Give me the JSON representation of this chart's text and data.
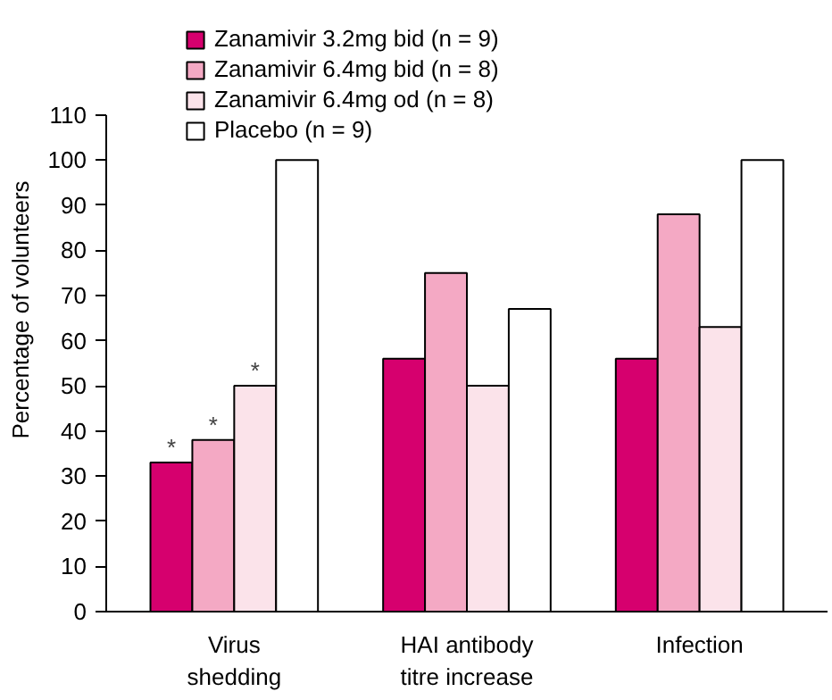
{
  "chart_data": {
    "type": "bar",
    "ylabel": "Percentage of volunteers",
    "categories": [
      "Virus\nshedding",
      "HAI antibody\ntitre increase",
      "Infection"
    ],
    "series": [
      {
        "name": "Zanamivir 3.2mg bid (n = 9)",
        "color": "#d6006e",
        "values": [
          33,
          56,
          56
        ]
      },
      {
        "name": "Zanamivir 6.4mg bid (n = 8)",
        "color": "#f4a9c4",
        "values": [
          38,
          75,
          88
        ]
      },
      {
        "name": "Zanamivir 6.4mg od (n = 8)",
        "color": "#fbe3ea",
        "values": [
          50,
          50,
          63
        ]
      },
      {
        "name": "Placebo (n = 9)",
        "color": "#ffffff",
        "values": [
          100,
          67,
          100
        ]
      }
    ],
    "ylim": [
      0,
      110
    ],
    "yticks": [
      0,
      10,
      20,
      30,
      40,
      50,
      60,
      70,
      80,
      90,
      100,
      110
    ],
    "grid": false,
    "legend": "top left",
    "annotations": [
      {
        "text": "*",
        "x": "Virus\nshedding",
        "y": 33
      },
      {
        "text": "*",
        "x": "Virus\nshedding",
        "y": 38
      },
      {
        "text": "*",
        "x": "Virus\nshedding",
        "y": 50
      }
    ]
  }
}
